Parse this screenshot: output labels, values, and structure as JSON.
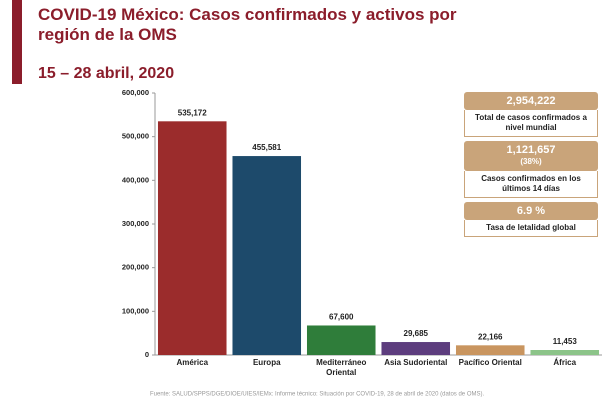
{
  "chart_data": {
    "type": "bar",
    "title": "COVID-19 México: Casos confirmados y activos por región de la OMS",
    "subtitle": "15 – 28 abril, 2020",
    "categories": [
      "América",
      "Europa",
      "Mediterráneo Oriental",
      "Asia Sudoriental",
      "Pacífico Oriental",
      "África"
    ],
    "values": [
      535172,
      455581,
      67600,
      29685,
      22166,
      11453
    ],
    "value_labels": [
      "535,172",
      "455,581",
      "67,600",
      "29,685",
      "22,166",
      "11,453"
    ],
    "colors": [
      "#9b2c2c",
      "#1d4a6b",
      "#2f7d3a",
      "#5d3d7e",
      "#c9955f",
      "#8cc489"
    ],
    "ylim": [
      0,
      600000
    ],
    "yticks": [
      0,
      {
        "value": 100000,
        "label": "100,000"
      },
      {
        "value": 200000,
        "label": "200,000"
      },
      {
        "value": 300000,
        "label": "300,000"
      },
      {
        "value": 400000,
        "label": "400,000"
      },
      {
        "value": 500000,
        "label": "500,000"
      },
      {
        "value": 600000,
        "label": "600,000"
      }
    ],
    "summary_boxes": [
      {
        "figure": [
          "2,954,222"
        ],
        "caption": "Total de casos confirmados a nivel mundial"
      },
      {
        "figure": [
          "1,121,657",
          "(38%)"
        ],
        "caption": "Casos confirmados en los últimos 14 días"
      },
      {
        "figure": [
          "6.9 %"
        ],
        "caption": "Tasa de letalidad global"
      }
    ],
    "source": "Fuente: SALUD/SPPS/DGE/DIOE/UIES/IEMx: Informe técnico: Situación por COVID-19, 28 de abril de 2020 (datos de OMS)."
  }
}
